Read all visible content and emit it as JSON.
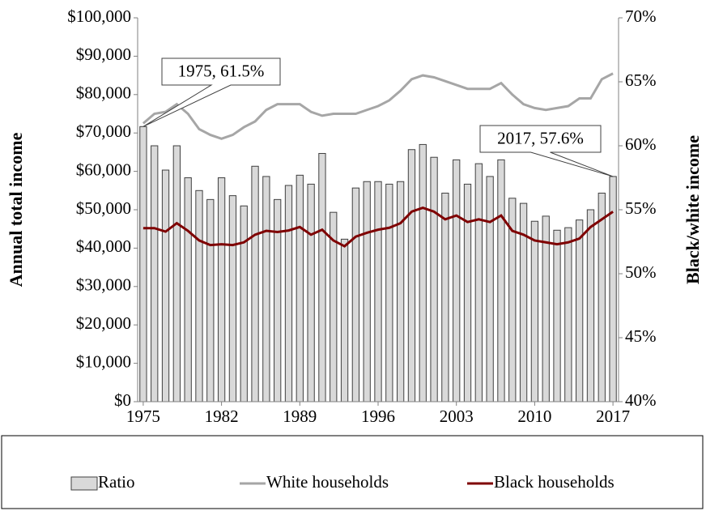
{
  "chart_data": {
    "type": "bar-line",
    "y_label": "Annual total income",
    "y2_label": "Black/white income",
    "x": [
      1975,
      1976,
      1977,
      1978,
      1979,
      1980,
      1981,
      1982,
      1983,
      1984,
      1985,
      1986,
      1987,
      1988,
      1989,
      1990,
      1991,
      1992,
      1993,
      1994,
      1995,
      1996,
      1997,
      1998,
      1999,
      2000,
      2001,
      2002,
      2003,
      2004,
      2005,
      2006,
      2007,
      2008,
      2009,
      2010,
      2011,
      2012,
      2013,
      2014,
      2015,
      2016,
      2017
    ],
    "xlim": [
      1974.5,
      2017.5
    ],
    "xticks": [
      1975,
      1982,
      1989,
      1996,
      2003,
      2010,
      2017
    ],
    "ylim": [
      0,
      100000
    ],
    "yticks": [
      {
        "value": 0,
        "label": "$0"
      },
      {
        "value": 10000,
        "label": "$10,000"
      },
      {
        "value": 20000,
        "label": "$20,000"
      },
      {
        "value": 30000,
        "label": "$30,000"
      },
      {
        "value": 40000,
        "label": "$40,000"
      },
      {
        "value": 50000,
        "label": "$50,000"
      },
      {
        "value": 60000,
        "label": "$60,000"
      },
      {
        "value": 70000,
        "label": "$70,000"
      },
      {
        "value": 80000,
        "label": "$80,000"
      },
      {
        "value": 90000,
        "label": "$90,000"
      },
      {
        "value": 100000,
        "label": "$100,000"
      }
    ],
    "y2lim": [
      40,
      70
    ],
    "y2ticks": [
      {
        "value": 40,
        "label": "40%"
      },
      {
        "value": 45,
        "label": "45%"
      },
      {
        "value": 50,
        "label": "50%"
      },
      {
        "value": 55,
        "label": "55%"
      },
      {
        "value": 60,
        "label": "60%"
      },
      {
        "value": 65,
        "label": "65%"
      },
      {
        "value": 70,
        "label": "70%"
      }
    ],
    "grid": false,
    "legend": "bottom",
    "series": [
      {
        "name": "Ratio",
        "type": "bar",
        "axis": "y2",
        "color": "#d9d9d9",
        "values": [
          61.5,
          60.0,
          58.1,
          60.0,
          57.5,
          56.5,
          55.8,
          57.5,
          56.1,
          55.3,
          58.4,
          57.6,
          55.8,
          56.9,
          57.7,
          57.0,
          59.4,
          54.8,
          52.7,
          56.7,
          57.2,
          57.2,
          57.0,
          57.2,
          59.7,
          60.1,
          59.1,
          56.3,
          58.9,
          57.0,
          58.6,
          57.6,
          58.9,
          55.9,
          55.5,
          54.1,
          54.5,
          53.4,
          53.6,
          54.2,
          55.0,
          56.3,
          57.6
        ]
      },
      {
        "name": "White households",
        "type": "line",
        "color": "#a6a6a6",
        "values": [
          72500,
          75000,
          75500,
          77500,
          75000,
          71000,
          69500,
          68500,
          69500,
          71500,
          73000,
          76000,
          77500,
          77500,
          77500,
          75500,
          74500,
          75000,
          75000,
          75000,
          76000,
          77000,
          78500,
          81000,
          84000,
          85000,
          84500,
          83500,
          82500,
          81500,
          81500,
          81500,
          83000,
          80000,
          77500,
          76500,
          76000,
          76500,
          77000,
          79000,
          79000,
          84000,
          85500
        ]
      },
      {
        "name": "Black households",
        "type": "line",
        "color": "#7f0000",
        "values": [
          45200,
          45200,
          44300,
          46500,
          44500,
          42000,
          40800,
          41000,
          40800,
          41500,
          43500,
          44500,
          44200,
          44600,
          45500,
          43500,
          44800,
          42000,
          40500,
          43000,
          44000,
          44800,
          45300,
          46500,
          49500,
          50500,
          49500,
          47500,
          48500,
          46800,
          47500,
          46800,
          48500,
          44500,
          43500,
          42000,
          41500,
          41000,
          41500,
          42500,
          45500,
          47500,
          49500
        ]
      }
    ],
    "annotations": [
      "1975, 61.5%",
      "2017, 57.6%"
    ]
  }
}
